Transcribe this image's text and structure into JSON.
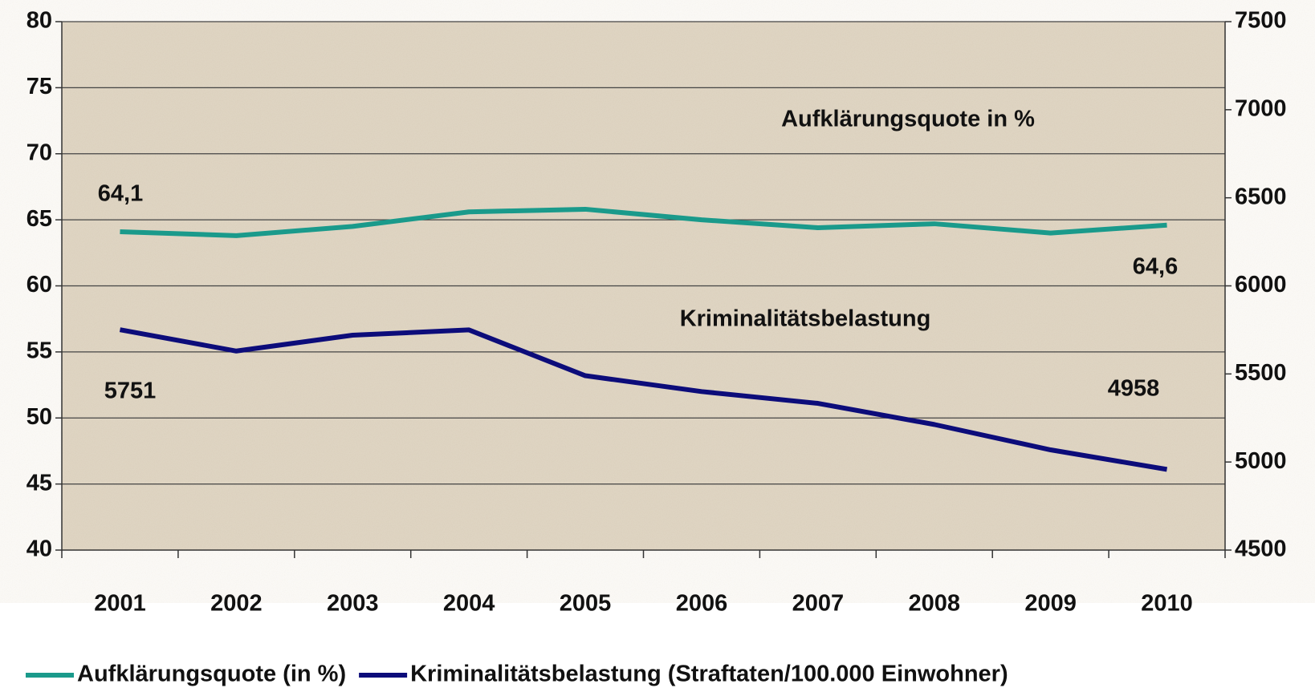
{
  "chart_data": {
    "type": "line",
    "categories": [
      "2001",
      "2002",
      "2003",
      "2004",
      "2005",
      "2006",
      "2007",
      "2008",
      "2009",
      "2010"
    ],
    "series": [
      {
        "name": "Aufklärungsquote (in %)",
        "color": "#1a9a8b",
        "values": [
          64.1,
          63.8,
          64.5,
          65.6,
          65.8,
          65.0,
          64.4,
          64.7,
          64.0,
          64.6
        ],
        "value_labels": [
          "64,1",
          null,
          null,
          null,
          null,
          null,
          null,
          null,
          null,
          "64,6"
        ]
      },
      {
        "name": "Kriminalitätsbelastung (Straftaten/100.000 Einwohner)",
        "color": "#0c0c7a",
        "axis": "y2",
        "values": [
          5751,
          5630,
          5720,
          5750,
          5490,
          5400,
          5333,
          5213,
          5069,
          4958
        ],
        "value_labels": [
          "5751",
          null,
          null,
          null,
          null,
          null,
          null,
          null,
          null,
          "4958"
        ]
      }
    ],
    "annotations": [
      "Aufklärungsquote in %",
      "Kriminalitätsbelastung"
    ],
    "ylim": [
      40,
      80
    ],
    "yticks": [
      40,
      45,
      50,
      55,
      60,
      65,
      70,
      75,
      80
    ],
    "y2lim": [
      4500,
      7500
    ],
    "y2ticks": [
      4500,
      5000,
      5500,
      6000,
      6500,
      7000,
      7500
    ],
    "grid": true,
    "legend": "bottom"
  }
}
